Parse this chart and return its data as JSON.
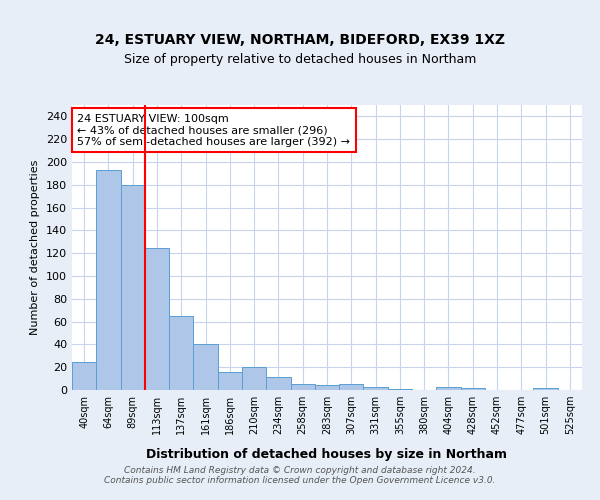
{
  "title1": "24, ESTUARY VIEW, NORTHAM, BIDEFORD, EX39 1XZ",
  "title2": "Size of property relative to detached houses in Northam",
  "xlabel": "Distribution of detached houses by size in Northam",
  "ylabel": "Number of detached properties",
  "bin_labels": [
    "40sqm",
    "64sqm",
    "89sqm",
    "113sqm",
    "137sqm",
    "161sqm",
    "186sqm",
    "210sqm",
    "234sqm",
    "258sqm",
    "283sqm",
    "307sqm",
    "331sqm",
    "355sqm",
    "380sqm",
    "404sqm",
    "428sqm",
    "452sqm",
    "477sqm",
    "501sqm",
    "525sqm"
  ],
  "bar_values": [
    25,
    193,
    180,
    125,
    65,
    40,
    16,
    20,
    11,
    5,
    4,
    5,
    3,
    1,
    0,
    3,
    2,
    0,
    0,
    2,
    0
  ],
  "bar_color": "#aec6e8",
  "bar_edge_color": "#5a9fd4",
  "red_line_index": 2,
  "annotation_line1": "24 ESTUARY VIEW: 100sqm",
  "annotation_line2": "← 43% of detached houses are smaller (296)",
  "annotation_line3": "57% of semi-detached houses are larger (392) →",
  "footer_text": "Contains HM Land Registry data © Crown copyright and database right 2024.\nContains public sector information licensed under the Open Government Licence v3.0.",
  "ylim": [
    0,
    250
  ],
  "yticks": [
    0,
    20,
    40,
    60,
    80,
    100,
    120,
    140,
    160,
    180,
    200,
    220,
    240
  ],
  "background_color": "#e8eef8",
  "plot_bg_color": "#ffffff",
  "grid_color": "#c8d4ec"
}
